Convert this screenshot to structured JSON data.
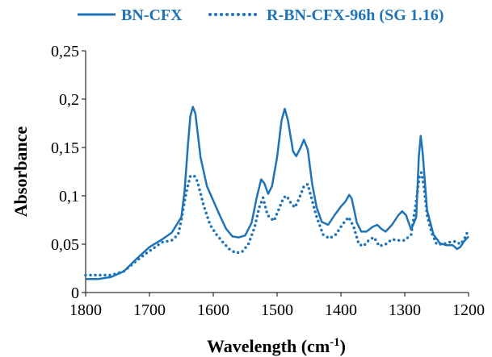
{
  "chart_data": {
    "type": "line",
    "xlabel": "Wavelength (cm",
    "xlabel_sup": "-1",
    "xlabel_close": ")",
    "ylabel": "Absorbance",
    "xlim": [
      1800,
      1200
    ],
    "ylim": [
      0,
      0.25
    ],
    "x_ticks": [
      1800,
      1700,
      1600,
      1500,
      1400,
      1300,
      1200
    ],
    "y_ticks": [
      0,
      0.05,
      0.1,
      0.15,
      0.2,
      0.25
    ],
    "y_tick_labels": [
      "0",
      "0,05",
      "0,1",
      "0,15",
      "0,2",
      "0,25"
    ],
    "legend_position": "top",
    "grid": false,
    "series": [
      {
        "name": "BN-CFX",
        "style": "solid",
        "color": "#1f73b7",
        "points": [
          [
            1800,
            0.014
          ],
          [
            1780,
            0.014
          ],
          [
            1760,
            0.016
          ],
          [
            1740,
            0.022
          ],
          [
            1720,
            0.035
          ],
          [
            1700,
            0.047
          ],
          [
            1680,
            0.055
          ],
          [
            1665,
            0.062
          ],
          [
            1650,
            0.078
          ],
          [
            1645,
            0.105
          ],
          [
            1640,
            0.15
          ],
          [
            1636,
            0.182
          ],
          [
            1632,
            0.192
          ],
          [
            1628,
            0.185
          ],
          [
            1620,
            0.14
          ],
          [
            1610,
            0.11
          ],
          [
            1600,
            0.095
          ],
          [
            1590,
            0.08
          ],
          [
            1580,
            0.066
          ],
          [
            1570,
            0.058
          ],
          [
            1560,
            0.057
          ],
          [
            1550,
            0.059
          ],
          [
            1540,
            0.072
          ],
          [
            1532,
            0.098
          ],
          [
            1525,
            0.117
          ],
          [
            1520,
            0.113
          ],
          [
            1514,
            0.102
          ],
          [
            1508,
            0.11
          ],
          [
            1500,
            0.14
          ],
          [
            1493,
            0.178
          ],
          [
            1488,
            0.19
          ],
          [
            1483,
            0.178
          ],
          [
            1475,
            0.146
          ],
          [
            1470,
            0.141
          ],
          [
            1463,
            0.15
          ],
          [
            1458,
            0.158
          ],
          [
            1452,
            0.148
          ],
          [
            1445,
            0.112
          ],
          [
            1438,
            0.088
          ],
          [
            1430,
            0.073
          ],
          [
            1420,
            0.07
          ],
          [
            1410,
            0.08
          ],
          [
            1400,
            0.089
          ],
          [
            1393,
            0.094
          ],
          [
            1387,
            0.101
          ],
          [
            1383,
            0.097
          ],
          [
            1375,
            0.072
          ],
          [
            1368,
            0.063
          ],
          [
            1360,
            0.063
          ],
          [
            1350,
            0.068
          ],
          [
            1343,
            0.07
          ],
          [
            1337,
            0.066
          ],
          [
            1330,
            0.063
          ],
          [
            1320,
            0.07
          ],
          [
            1310,
            0.08
          ],
          [
            1304,
            0.084
          ],
          [
            1298,
            0.08
          ],
          [
            1290,
            0.065
          ],
          [
            1282,
            0.078
          ],
          [
            1278,
            0.14
          ],
          [
            1275,
            0.162
          ],
          [
            1272,
            0.145
          ],
          [
            1265,
            0.085
          ],
          [
            1255,
            0.06
          ],
          [
            1245,
            0.051
          ],
          [
            1235,
            0.049
          ],
          [
            1225,
            0.049
          ],
          [
            1218,
            0.045
          ],
          [
            1213,
            0.047
          ],
          [
            1207,
            0.053
          ],
          [
            1200,
            0.058
          ]
        ]
      },
      {
        "name": "R-BN-CFX-96h (SG 1.16)",
        "style": "dotted",
        "color": "#1f73b7",
        "points": [
          [
            1800,
            0.018
          ],
          [
            1780,
            0.018
          ],
          [
            1760,
            0.018
          ],
          [
            1740,
            0.022
          ],
          [
            1720,
            0.033
          ],
          [
            1700,
            0.043
          ],
          [
            1680,
            0.052
          ],
          [
            1665,
            0.054
          ],
          [
            1655,
            0.06
          ],
          [
            1650,
            0.075
          ],
          [
            1642,
            0.105
          ],
          [
            1636,
            0.12
          ],
          [
            1630,
            0.121
          ],
          [
            1625,
            0.115
          ],
          [
            1615,
            0.09
          ],
          [
            1605,
            0.07
          ],
          [
            1595,
            0.06
          ],
          [
            1585,
            0.052
          ],
          [
            1575,
            0.045
          ],
          [
            1565,
            0.041
          ],
          [
            1555,
            0.042
          ],
          [
            1545,
            0.05
          ],
          [
            1535,
            0.068
          ],
          [
            1528,
            0.088
          ],
          [
            1522,
            0.098
          ],
          [
            1515,
            0.08
          ],
          [
            1505,
            0.074
          ],
          [
            1498,
            0.085
          ],
          [
            1490,
            0.098
          ],
          [
            1485,
            0.1
          ],
          [
            1478,
            0.092
          ],
          [
            1472,
            0.088
          ],
          [
            1465,
            0.098
          ],
          [
            1458,
            0.11
          ],
          [
            1452,
            0.112
          ],
          [
            1445,
            0.095
          ],
          [
            1438,
            0.078
          ],
          [
            1428,
            0.06
          ],
          [
            1418,
            0.056
          ],
          [
            1408,
            0.06
          ],
          [
            1398,
            0.07
          ],
          [
            1388,
            0.078
          ],
          [
            1380,
            0.068
          ],
          [
            1372,
            0.05
          ],
          [
            1365,
            0.048
          ],
          [
            1355,
            0.055
          ],
          [
            1348,
            0.057
          ],
          [
            1340,
            0.048
          ],
          [
            1330,
            0.05
          ],
          [
            1320,
            0.055
          ],
          [
            1310,
            0.054
          ],
          [
            1300,
            0.054
          ],
          [
            1290,
            0.06
          ],
          [
            1283,
            0.09
          ],
          [
            1277,
            0.12
          ],
          [
            1274,
            0.124
          ],
          [
            1270,
            0.11
          ],
          [
            1265,
            0.08
          ],
          [
            1258,
            0.062
          ],
          [
            1250,
            0.05
          ],
          [
            1240,
            0.05
          ],
          [
            1230,
            0.052
          ],
          [
            1220,
            0.053
          ],
          [
            1213,
            0.05
          ],
          [
            1207,
            0.055
          ],
          [
            1200,
            0.065
          ]
        ]
      }
    ]
  }
}
